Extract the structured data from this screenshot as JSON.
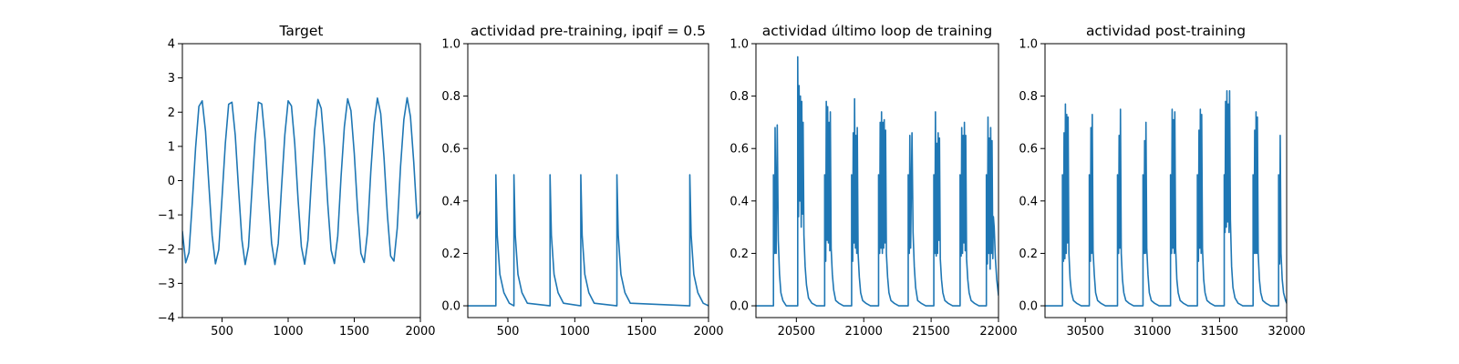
{
  "chart_data": [
    {
      "type": "line",
      "title": "Target",
      "xlim": [
        200,
        2000
      ],
      "ylim": [
        -4,
        4
      ],
      "xticks": [
        500,
        1000,
        1500,
        2000
      ],
      "yticks": [
        4,
        3,
        2,
        1,
        0,
        -1,
        -2,
        -3,
        -4
      ],
      "xtick_labels": [
        "500",
        "1000",
        "1500",
        "2000"
      ],
      "ytick_labels": [
        "4",
        "3",
        "2",
        "1",
        "0",
        "−1",
        "−2",
        "−3",
        "−4"
      ],
      "series": [
        {
          "color": "#1f77b4",
          "x": [
            200,
            225,
            250,
            275,
            300,
            325,
            350,
            375,
            400,
            425,
            450,
            475,
            500,
            525,
            550,
            575,
            600,
            625,
            650,
            675,
            700,
            725,
            750,
            775,
            800,
            825,
            850,
            875,
            900,
            925,
            950,
            975,
            1000,
            1025,
            1050,
            1075,
            1100,
            1125,
            1150,
            1175,
            1200,
            1225,
            1250,
            1275,
            1300,
            1325,
            1350,
            1375,
            1400,
            1425,
            1450,
            1475,
            1500,
            1525,
            1550,
            1575,
            1600,
            1625,
            1650,
            1675,
            1700,
            1725,
            1750,
            1775,
            1800,
            1825,
            1850,
            1875,
            1900,
            1925,
            1950,
            1975,
            2000
          ],
          "y": [
            -1.48,
            -2.4,
            -2.1,
            -0.64,
            0.96,
            2.17,
            2.33,
            1.44,
            -0.1,
            -1.6,
            -2.43,
            -2.02,
            -0.49,
            1.09,
            2.23,
            2.29,
            1.32,
            -0.25,
            -1.72,
            -2.45,
            -1.93,
            -0.34,
            1.22,
            2.29,
            2.24,
            1.2,
            -0.4,
            -1.83,
            -2.45,
            -1.83,
            -0.19,
            1.34,
            2.33,
            2.18,
            1.07,
            -0.55,
            -1.93,
            -2.44,
            -1.73,
            -0.04,
            1.46,
            2.37,
            2.11,
            0.94,
            -0.7,
            -2.03,
            -2.42,
            -1.62,
            0.11,
            1.57,
            2.39,
            2.04,
            0.8,
            -0.84,
            -2.12,
            -2.39,
            -1.51,
            0.26,
            1.67,
            2.41,
            1.96,
            0.67,
            -0.97,
            -2.2,
            -2.35,
            -1.39,
            0.41,
            1.78,
            2.42,
            1.87,
            0.53,
            -1.1,
            -0.9
          ]
        }
      ]
    },
    {
      "type": "line",
      "title": "actividad pre-training, ipqif = 0.5",
      "xlim": [
        200,
        2000
      ],
      "ylim": [
        -0.045,
        1.0
      ],
      "xticks": [
        500,
        1000,
        1500,
        2000
      ],
      "yticks": [
        0.0,
        0.2,
        0.4,
        0.6,
        0.8,
        1.0
      ],
      "xtick_labels": [
        "500",
        "1000",
        "1500",
        "2000"
      ],
      "ytick_labels": [
        "0.0",
        "0.2",
        "0.4",
        "0.6",
        "0.8",
        "1.0"
      ],
      "series": [
        {
          "color": "#1f77b4",
          "x": [
            200,
            410,
            410,
            420,
            440,
            470,
            510,
            545,
            545,
            555,
            575,
            605,
            645,
            815,
            815,
            825,
            845,
            875,
            915,
            1045,
            1045,
            1055,
            1075,
            1105,
            1145,
            1315,
            1315,
            1325,
            1345,
            1375,
            1415,
            1860,
            1860,
            1870,
            1890,
            1920,
            1960,
            2000
          ],
          "y": [
            0,
            0,
            0.5,
            0.27,
            0.12,
            0.05,
            0.01,
            0,
            0.5,
            0.27,
            0.12,
            0.05,
            0.01,
            0,
            0.5,
            0.27,
            0.12,
            0.05,
            0.01,
            0,
            0.5,
            0.27,
            0.12,
            0.05,
            0.01,
            0,
            0.5,
            0.27,
            0.12,
            0.05,
            0.01,
            0,
            0.5,
            0.27,
            0.12,
            0.05,
            0.01,
            0
          ]
        }
      ]
    },
    {
      "type": "line",
      "title": "actividad último loop de training",
      "xlim": [
        20200,
        22000
      ],
      "ylim": [
        -0.045,
        1.0
      ],
      "xticks": [
        20500,
        21000,
        21500,
        22000
      ],
      "yticks": [
        0.0,
        0.2,
        0.4,
        0.6,
        0.8,
        1.0
      ],
      "xtick_labels": [
        "20500",
        "21000",
        "21500",
        "22000"
      ],
      "ytick_labels": [
        "0.0",
        "0.2",
        "0.4",
        "0.6",
        "0.8",
        "1.0"
      ],
      "series": [
        {
          "color": "#1f77b4",
          "x": [
            20200,
            20330,
            20330,
            20340,
            20342,
            20350,
            20358,
            20366,
            20375,
            20385,
            20400,
            20425,
            20460,
            20510,
            20510,
            20516,
            20520,
            20526,
            20530,
            20536,
            20540,
            20546,
            20550,
            20556,
            20565,
            20575,
            20590,
            20615,
            20650,
            20710,
            20710,
            20718,
            20722,
            20728,
            20732,
            20738,
            20742,
            20748,
            20752,
            20758,
            20767,
            20777,
            20792,
            20815,
            20850,
            20910,
            20910,
            20918,
            20922,
            20928,
            20932,
            20938,
            20942,
            20948,
            20952,
            20958,
            20967,
            20977,
            20992,
            21015,
            21050,
            21110,
            21110,
            21118,
            21122,
            21128,
            21132,
            21138,
            21142,
            21148,
            21152,
            21158,
            21162,
            21168,
            21177,
            21187,
            21202,
            21225,
            21260,
            21330,
            21330,
            21338,
            21342,
            21348,
            21358,
            21366,
            21375,
            21385,
            21400,
            21425,
            21460,
            21520,
            21520,
            21528,
            21532,
            21538,
            21542,
            21548,
            21552,
            21558,
            21562,
            21568,
            21577,
            21587,
            21602,
            21625,
            21660,
            21715,
            21715,
            21723,
            21727,
            21733,
            21737,
            21743,
            21747,
            21753,
            21757,
            21763,
            21772,
            21782,
            21797,
            21820,
            21855,
            21910,
            21910,
            21918,
            21922,
            21928,
            21932,
            21938,
            21942,
            21948,
            21952,
            21958,
            21962,
            21968,
            21977,
            21987,
            22000
          ],
          "y": [
            0,
            0,
            0.5,
            0.2,
            0.68,
            0.2,
            0.69,
            0.25,
            0.12,
            0.05,
            0.02,
            0,
            0,
            0,
            0.95,
            0.34,
            0.84,
            0.4,
            0.8,
            0.3,
            0.78,
            0.35,
            0.7,
            0.27,
            0.15,
            0.08,
            0.03,
            0.01,
            0,
            0,
            0.5,
            0.17,
            0.78,
            0.25,
            0.76,
            0.24,
            0.7,
            0.21,
            0.74,
            0.22,
            0.12,
            0.06,
            0.02,
            0.01,
            0,
            0,
            0.5,
            0.17,
            0.66,
            0.24,
            0.79,
            0.22,
            0.65,
            0.2,
            0.68,
            0.2,
            0.11,
            0.05,
            0.02,
            0.01,
            0,
            0,
            0.5,
            0.2,
            0.7,
            0.22,
            0.74,
            0.2,
            0.7,
            0.22,
            0.71,
            0.24,
            0.67,
            0.2,
            0.11,
            0.05,
            0.02,
            0.01,
            0,
            0,
            0.5,
            0.2,
            0.65,
            0.22,
            0.66,
            0.28,
            0.15,
            0.07,
            0.02,
            0.01,
            0,
            0,
            0.5,
            0.2,
            0.74,
            0.19,
            0.62,
            0.2,
            0.66,
            0.25,
            0.64,
            0.18,
            0.1,
            0.05,
            0.02,
            0.01,
            0,
            0,
            0.5,
            0.19,
            0.68,
            0.2,
            0.65,
            0.24,
            0.7,
            0.21,
            0.65,
            0.18,
            0.1,
            0.05,
            0.02,
            0.01,
            0,
            0,
            0.5,
            0.16,
            0.72,
            0.2,
            0.64,
            0.14,
            0.68,
            0.2,
            0.63,
            0.18,
            0.34,
            0.3,
            0.18,
            0.1,
            0.04
          ]
        }
      ]
    },
    {
      "type": "line",
      "title": "actividad post-training",
      "xlim": [
        30200,
        32000
      ],
      "ylim": [
        -0.045,
        1.0
      ],
      "xticks": [
        30500,
        31000,
        31500,
        32000
      ],
      "yticks": [
        0.0,
        0.2,
        0.4,
        0.6,
        0.8,
        1.0
      ],
      "xtick_labels": [
        "30500",
        "31000",
        "31500",
        "32000"
      ],
      "ytick_labels": [
        "0.0",
        "0.2",
        "0.4",
        "0.6",
        "0.8",
        "1.0"
      ],
      "series": [
        {
          "color": "#1f77b4",
          "x": [
            30200,
            30330,
            30330,
            30338,
            30342,
            30348,
            30352,
            30358,
            30362,
            30368,
            30372,
            30378,
            30387,
            30397,
            30412,
            30435,
            30470,
            30530,
            30530,
            30538,
            30542,
            30548,
            30552,
            30558,
            30567,
            30577,
            30592,
            30615,
            30650,
            30740,
            30740,
            30748,
            30752,
            30758,
            30762,
            30768,
            30777,
            30787,
            30802,
            30825,
            30860,
            30930,
            30930,
            30938,
            30942,
            30948,
            30952,
            30958,
            30967,
            30977,
            30992,
            31015,
            31050,
            31135,
            31135,
            31143,
            31147,
            31153,
            31157,
            31163,
            31167,
            31173,
            31182,
            31192,
            31207,
            31230,
            31265,
            31335,
            31335,
            31343,
            31347,
            31353,
            31357,
            31363,
            31367,
            31373,
            31382,
            31392,
            31407,
            31430,
            31465,
            31535,
            31535,
            31541,
            31545,
            31551,
            31555,
            31561,
            31565,
            31571,
            31575,
            31581,
            31590,
            31600,
            31615,
            31638,
            31673,
            31750,
            31750,
            31758,
            31762,
            31768,
            31772,
            31778,
            31782,
            31788,
            31797,
            31807,
            31822,
            31845,
            31880,
            31940,
            31940,
            31948,
            31952,
            31958,
            31967,
            31977,
            31992,
            32000
          ],
          "y": [
            0,
            0,
            0.5,
            0.17,
            0.66,
            0.18,
            0.77,
            0.2,
            0.73,
            0.24,
            0.72,
            0.2,
            0.1,
            0.05,
            0.02,
            0.01,
            0,
            0,
            0.5,
            0.17,
            0.68,
            0.2,
            0.73,
            0.21,
            0.12,
            0.05,
            0.02,
            0.01,
            0,
            0,
            0.5,
            0.2,
            0.65,
            0.22,
            0.75,
            0.2,
            0.1,
            0.05,
            0.02,
            0.01,
            0,
            0,
            0.5,
            0.2,
            0.63,
            0.2,
            0.7,
            0.22,
            0.12,
            0.05,
            0.02,
            0.01,
            0,
            0,
            0.5,
            0.2,
            0.75,
            0.22,
            0.71,
            0.2,
            0.74,
            0.22,
            0.1,
            0.05,
            0.02,
            0.01,
            0,
            0,
            0.5,
            0.17,
            0.67,
            0.22,
            0.75,
            0.2,
            0.73,
            0.22,
            0.1,
            0.05,
            0.02,
            0.01,
            0,
            0,
            0.5,
            0.28,
            0.78,
            0.3,
            0.82,
            0.32,
            0.77,
            0.28,
            0.82,
            0.33,
            0.15,
            0.07,
            0.03,
            0.01,
            0,
            0,
            0.5,
            0.2,
            0.67,
            0.2,
            0.74,
            0.2,
            0.72,
            0.2,
            0.1,
            0.05,
            0.02,
            0.01,
            0,
            0,
            0.5,
            0.16,
            0.65,
            0.2,
            0.1,
            0.05,
            0.02,
            0.01
          ]
        }
      ]
    }
  ]
}
